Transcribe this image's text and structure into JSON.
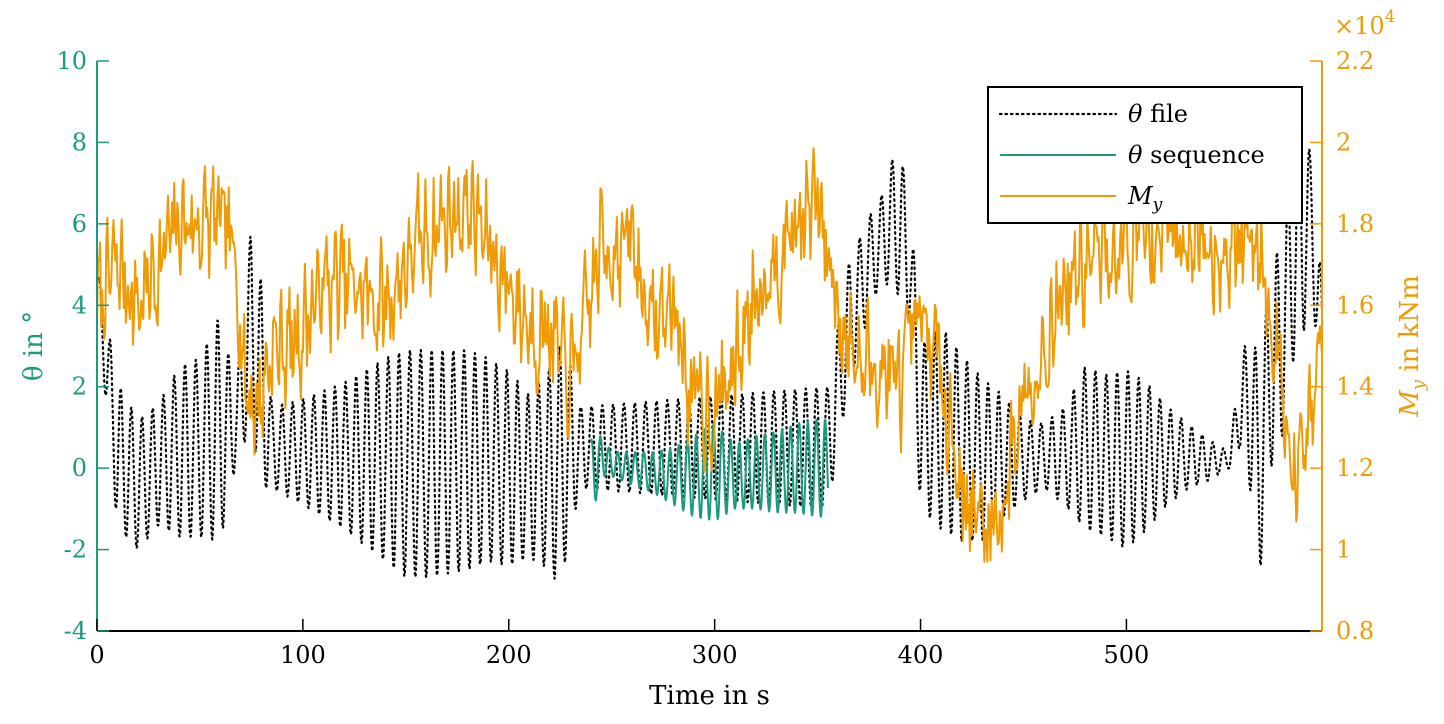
{
  "chart_data": {
    "type": "line",
    "xlabel": "Time in s",
    "ylabel_left": "θ in °",
    "ylabel_right": "M",
    "ylabel_right_sub": "y",
    "ylabel_right_unit": " in kNm",
    "right_multiplier": "×10",
    "right_multiplier_exp": "4",
    "xlim": [
      0,
      595
    ],
    "ylim_left": [
      -4,
      10
    ],
    "ylim_right": [
      0.8,
      2.2
    ],
    "xticks": [
      0,
      100,
      200,
      300,
      400,
      500
    ],
    "yticks_left": [
      "-4",
      "-2",
      "0",
      "2",
      "4",
      "6",
      "8",
      "10"
    ],
    "yticks_right": [
      "0.8",
      "1",
      "1.2",
      "1.4",
      "1.6",
      "1.8",
      "2",
      "2.2"
    ],
    "colors": {
      "theta_file": "#000000",
      "theta_sequence": "#1a9a7f",
      "my": "#ee9b06",
      "left_axis": "#1a9a7f",
      "right_axis": "#ee9b06"
    },
    "legend": {
      "position": "top-right",
      "entries": [
        {
          "key": "theta_file",
          "symbol": "θ",
          "text": " file"
        },
        {
          "key": "theta_sequence",
          "symbol": "θ",
          "text": " sequence"
        },
        {
          "key": "my",
          "symbol": "M",
          "sub": "y",
          "text": ""
        }
      ]
    },
    "series": [
      {
        "key": "theta_file",
        "axis": "left",
        "style": "dotted",
        "envelope": {
          "t": [
            0,
            10,
            20,
            30,
            40,
            50,
            60,
            65,
            68,
            75,
            80,
            85,
            100,
            120,
            140,
            150,
            160,
            180,
            190,
            200,
            210,
            220,
            225,
            230,
            235,
            355,
            365,
            375,
            380,
            385,
            390,
            395,
            400,
            410,
            420,
            430,
            440,
            450,
            460,
            470,
            480,
            490,
            500,
            510,
            520,
            530,
            540,
            550,
            555,
            560,
            565,
            570,
            575,
            580,
            585,
            590,
            595
          ],
          "center": [
            4.5,
            0.3,
            -0.4,
            0.1,
            0.4,
            0.5,
            1.0,
            1.0,
            1.2,
            3.5,
            2.0,
            0.5,
            0.4,
            0.3,
            0.2,
            0.1,
            0.1,
            0.2,
            0.2,
            0.0,
            -0.2,
            0.0,
            0.0,
            0.5,
            0.5,
            0.5,
            3.5,
            5.0,
            5.5,
            6.0,
            6.0,
            5.0,
            1.0,
            1.0,
            0.5,
            0.2,
            0.3,
            0.2,
            0.3,
            0.3,
            0.5,
            0.3,
            0.2,
            0.3,
            0.3,
            0.3,
            0.2,
            0.2,
            1.5,
            1.5,
            0.0,
            2.5,
            3.0,
            5.0,
            6.0,
            6.0,
            3.0
          ],
          "amp": [
            0.5,
            1.8,
            1.6,
            1.5,
            2.1,
            2.2,
            2.8,
            1.5,
            1.0,
            2.5,
            2.5,
            1.0,
            1.3,
            1.8,
            2.5,
            2.8,
            2.8,
            2.7,
            2.5,
            2.4,
            2.0,
            2.5,
            3.0,
            2.0,
            1.0,
            1.5,
            1.5,
            1.2,
            1.0,
            1.5,
            1.8,
            1.5,
            2.0,
            2.5,
            2.3,
            2.0,
            1.5,
            1.0,
            0.8,
            1.2,
            2.0,
            2.0,
            2.2,
            1.8,
            1.2,
            0.8,
            0.5,
            0.2,
            1.0,
            2.0,
            2.5,
            2.5,
            2.5,
            2.5,
            3.0,
            1.5,
            1.5
          ],
          "period": 5.2
        }
      },
      {
        "key": "theta_sequence",
        "axis": "left",
        "style": "solid",
        "envelope": {
          "t": [
            240,
            245,
            250,
            260,
            270,
            280,
            290,
            300,
            310,
            320,
            330,
            340,
            350,
            355
          ],
          "center": [
            -0.3,
            0.3,
            0.1,
            0.0,
            -0.1,
            -0.2,
            -0.2,
            -0.1,
            -0.2,
            -0.1,
            -0.1,
            0.0,
            0.0,
            0.0
          ],
          "amp": [
            1.0,
            0.5,
            0.3,
            0.4,
            0.5,
            0.7,
            1.0,
            1.2,
            0.8,
            0.9,
            1.0,
            1.1,
            1.2,
            1.2
          ],
          "period": 4.2
        }
      },
      {
        "key": "my",
        "axis": "right",
        "style": "solid",
        "trend": {
          "t": [
            0,
            10,
            20,
            30,
            40,
            50,
            60,
            68,
            72,
            78,
            85,
            95,
            110,
            120,
            140,
            150,
            165,
            180,
            190,
            200,
            210,
            220,
            228,
            235,
            245,
            260,
            270,
            280,
            290,
            300,
            310,
            320,
            340,
            350,
            360,
            370,
            380,
            390,
            400,
            410,
            420,
            430,
            440,
            450,
            460,
            470,
            480,
            500,
            520,
            540,
            560,
            565,
            570,
            575,
            580,
            590,
            595
          ],
          "value": [
            1.6,
            1.7,
            1.6,
            1.7,
            1.8,
            1.8,
            1.8,
            1.7,
            1.4,
            1.35,
            1.5,
            1.5,
            1.65,
            1.65,
            1.6,
            1.7,
            1.8,
            1.85,
            1.75,
            1.65,
            1.55,
            1.55,
            1.4,
            1.5,
            1.75,
            1.75,
            1.55,
            1.6,
            1.35,
            1.35,
            1.45,
            1.65,
            1.8,
            1.85,
            1.6,
            1.45,
            1.45,
            1.4,
            1.55,
            1.45,
            1.15,
            1.05,
            1.1,
            1.4,
            1.5,
            1.65,
            1.7,
            1.75,
            1.8,
            1.75,
            1.75,
            1.75,
            1.6,
            1.45,
            1.15,
            1.3,
            1.55
          ],
          "noise": 0.22,
          "seed": 7
        }
      }
    ]
  }
}
